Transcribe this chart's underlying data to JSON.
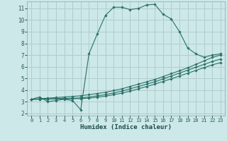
{
  "xlabel": "Humidex (Indice chaleur)",
  "bg_color": "#cce8e8",
  "grid_color": "#b0cccc",
  "line_color": "#2a7068",
  "xlim": [
    -0.5,
    23.5
  ],
  "ylim": [
    1.8,
    11.6
  ],
  "yticks": [
    2,
    3,
    4,
    5,
    6,
    7,
    8,
    9,
    10,
    11
  ],
  "xticks": [
    0,
    1,
    2,
    3,
    4,
    5,
    6,
    7,
    8,
    9,
    10,
    11,
    12,
    13,
    14,
    15,
    16,
    17,
    18,
    19,
    20,
    21,
    22,
    23
  ],
  "series": [
    {
      "x": [
        0,
        1,
        2,
        3,
        4,
        5,
        6,
        7,
        8,
        9,
        10,
        11,
        12,
        13,
        14,
        15,
        16,
        17,
        18,
        19,
        20,
        21,
        22,
        23
      ],
      "y": [
        3.2,
        3.4,
        3.0,
        3.1,
        3.2,
        3.1,
        2.3,
        7.1,
        8.8,
        10.4,
        11.1,
        11.1,
        10.9,
        11.0,
        11.3,
        11.35,
        10.5,
        10.1,
        9.0,
        7.6,
        7.1,
        6.8,
        7.0,
        7.1
      ]
    },
    {
      "x": [
        0,
        1,
        2,
        3,
        4,
        5,
        6,
        7,
        8,
        9,
        10,
        11,
        12,
        13,
        14,
        15,
        16,
        17,
        18,
        19,
        20,
        21,
        22,
        23
      ],
      "y": [
        3.2,
        3.25,
        3.3,
        3.35,
        3.4,
        3.45,
        3.5,
        3.6,
        3.7,
        3.8,
        3.95,
        4.1,
        4.3,
        4.5,
        4.7,
        4.9,
        5.15,
        5.4,
        5.65,
        5.9,
        6.2,
        6.5,
        6.8,
        7.0
      ]
    },
    {
      "x": [
        0,
        1,
        2,
        3,
        4,
        5,
        6,
        7,
        8,
        9,
        10,
        11,
        12,
        13,
        14,
        15,
        16,
        17,
        18,
        19,
        20,
        21,
        22,
        23
      ],
      "y": [
        3.2,
        3.22,
        3.24,
        3.26,
        3.28,
        3.3,
        3.32,
        3.4,
        3.5,
        3.6,
        3.75,
        3.9,
        4.1,
        4.3,
        4.5,
        4.7,
        4.95,
        5.2,
        5.45,
        5.7,
        5.95,
        6.2,
        6.45,
        6.65
      ]
    },
    {
      "x": [
        0,
        1,
        2,
        3,
        4,
        5,
        6,
        7,
        8,
        9,
        10,
        11,
        12,
        13,
        14,
        15,
        16,
        17,
        18,
        19,
        20,
        21,
        22,
        23
      ],
      "y": [
        3.2,
        3.21,
        3.22,
        3.23,
        3.24,
        3.25,
        3.26,
        3.3,
        3.38,
        3.47,
        3.6,
        3.73,
        3.9,
        4.1,
        4.3,
        4.5,
        4.73,
        4.96,
        5.2,
        5.44,
        5.68,
        5.92,
        6.16,
        6.35
      ]
    }
  ]
}
